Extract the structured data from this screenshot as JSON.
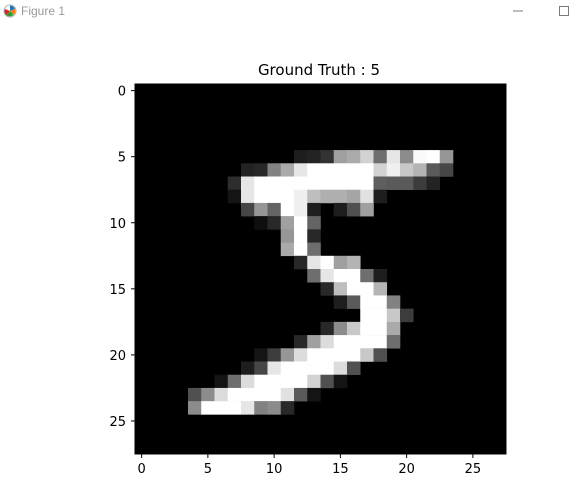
{
  "window": {
    "title": "Figure 1",
    "icons": {
      "app": "matplotlib-logo-icon",
      "minimize": "minimize-icon",
      "maximize": "maximize-icon"
    }
  },
  "chart_data": {
    "type": "heatmap",
    "colormap": "gray",
    "title": "Ground Truth : 5",
    "xlabel": "",
    "ylabel": "",
    "xlim": [
      -0.5,
      27.5
    ],
    "ylim": [
      27.5,
      -0.5
    ],
    "xticks": [
      0,
      5,
      10,
      15,
      20,
      25
    ],
    "yticks": [
      0,
      5,
      10,
      15,
      20,
      25
    ],
    "grid": false,
    "rows": 28,
    "cols": 28,
    "pixels": [
      {
        "row": 5,
        "values": [
          [
            12,
            30
          ],
          [
            13,
            35
          ],
          [
            14,
            50
          ],
          [
            15,
            160
          ],
          [
            16,
            170
          ],
          [
            17,
            210
          ],
          [
            18,
            110
          ],
          [
            19,
            230
          ],
          [
            20,
            140
          ],
          [
            21,
            250
          ],
          [
            22,
            255
          ],
          [
            23,
            150
          ]
        ]
      },
      {
        "row": 6,
        "values": [
          [
            8,
            35
          ],
          [
            9,
            40
          ],
          [
            10,
            130
          ],
          [
            11,
            170
          ],
          [
            12,
            230
          ],
          [
            13,
            255
          ],
          [
            14,
            255
          ],
          [
            15,
            255
          ],
          [
            16,
            255
          ],
          [
            17,
            255
          ],
          [
            18,
            210
          ],
          [
            19,
            240
          ],
          [
            20,
            200
          ],
          [
            21,
            180
          ],
          [
            22,
            90
          ],
          [
            23,
            70
          ]
        ]
      },
      {
        "row": 7,
        "values": [
          [
            7,
            45
          ],
          [
            8,
            230
          ],
          [
            9,
            255
          ],
          [
            10,
            255
          ],
          [
            11,
            255
          ],
          [
            12,
            255
          ],
          [
            13,
            255
          ],
          [
            14,
            255
          ],
          [
            15,
            255
          ],
          [
            16,
            255
          ],
          [
            17,
            255
          ],
          [
            18,
            95
          ],
          [
            19,
            90
          ],
          [
            20,
            90
          ],
          [
            21,
            60
          ],
          [
            22,
            35
          ]
        ]
      },
      {
        "row": 8,
        "values": [
          [
            7,
            20
          ],
          [
            8,
            230
          ],
          [
            9,
            255
          ],
          [
            10,
            255
          ],
          [
            11,
            255
          ],
          [
            12,
            240
          ],
          [
            13,
            190
          ],
          [
            14,
            175
          ],
          [
            15,
            175
          ],
          [
            16,
            165
          ],
          [
            17,
            225
          ],
          [
            18,
            30
          ]
        ]
      },
      {
        "row": 9,
        "values": [
          [
            8,
            70
          ],
          [
            9,
            150
          ],
          [
            10,
            100
          ],
          [
            11,
            255
          ],
          [
            12,
            240
          ],
          [
            13,
            30
          ],
          [
            15,
            30
          ],
          [
            16,
            80
          ],
          [
            17,
            160
          ]
        ]
      },
      {
        "row": 10,
        "values": [
          [
            9,
            15
          ],
          [
            10,
            40
          ],
          [
            11,
            160
          ],
          [
            12,
            255
          ],
          [
            13,
            100
          ]
        ]
      },
      {
        "row": 11,
        "values": [
          [
            11,
            150
          ],
          [
            12,
            255
          ],
          [
            13,
            40
          ]
        ]
      },
      {
        "row": 12,
        "values": [
          [
            11,
            170
          ],
          [
            12,
            255
          ],
          [
            13,
            110
          ]
        ]
      },
      {
        "row": 13,
        "values": [
          [
            12,
            40
          ],
          [
            13,
            230
          ],
          [
            14,
            255
          ],
          [
            15,
            160
          ],
          [
            16,
            180
          ]
        ]
      },
      {
        "row": 14,
        "values": [
          [
            13,
            110
          ],
          [
            14,
            230
          ],
          [
            15,
            255
          ],
          [
            16,
            255
          ],
          [
            17,
            110
          ],
          [
            18,
            30
          ]
        ]
      },
      {
        "row": 15,
        "values": [
          [
            14,
            40
          ],
          [
            15,
            190
          ],
          [
            16,
            255
          ],
          [
            17,
            255
          ],
          [
            18,
            180
          ]
        ]
      },
      {
        "row": 16,
        "values": [
          [
            15,
            30
          ],
          [
            16,
            90
          ],
          [
            17,
            255
          ],
          [
            18,
            255
          ],
          [
            19,
            130
          ]
        ]
      },
      {
        "row": 17,
        "values": [
          [
            17,
            255
          ],
          [
            18,
            255
          ],
          [
            19,
            200
          ],
          [
            20,
            60
          ]
        ]
      },
      {
        "row": 18,
        "values": [
          [
            14,
            40
          ],
          [
            15,
            140
          ],
          [
            16,
            200
          ],
          [
            17,
            255
          ],
          [
            18,
            255
          ],
          [
            19,
            170
          ]
        ]
      },
      {
        "row": 19,
        "values": [
          [
            12,
            40
          ],
          [
            13,
            160
          ],
          [
            14,
            220
          ],
          [
            15,
            255
          ],
          [
            16,
            255
          ],
          [
            17,
            255
          ],
          [
            18,
            255
          ],
          [
            19,
            110
          ]
        ]
      },
      {
        "row": 20,
        "values": [
          [
            9,
            20
          ],
          [
            10,
            60
          ],
          [
            11,
            150
          ],
          [
            12,
            220
          ],
          [
            13,
            255
          ],
          [
            14,
            255
          ],
          [
            15,
            255
          ],
          [
            16,
            255
          ],
          [
            17,
            200
          ],
          [
            18,
            80
          ]
        ]
      },
      {
        "row": 21,
        "values": [
          [
            8,
            30
          ],
          [
            9,
            70
          ],
          [
            10,
            230
          ],
          [
            11,
            255
          ],
          [
            12,
            255
          ],
          [
            13,
            255
          ],
          [
            14,
            255
          ],
          [
            15,
            220
          ],
          [
            16,
            80
          ]
        ]
      },
      {
        "row": 22,
        "values": [
          [
            6,
            20
          ],
          [
            7,
            110
          ],
          [
            8,
            220
          ],
          [
            9,
            255
          ],
          [
            10,
            255
          ],
          [
            11,
            255
          ],
          [
            12,
            255
          ],
          [
            13,
            210
          ],
          [
            14,
            80
          ],
          [
            15,
            20
          ]
        ]
      },
      {
        "row": 23,
        "values": [
          [
            4,
            80
          ],
          [
            5,
            140
          ],
          [
            6,
            220
          ],
          [
            7,
            255
          ],
          [
            8,
            255
          ],
          [
            9,
            255
          ],
          [
            10,
            255
          ],
          [
            11,
            225
          ],
          [
            12,
            90
          ],
          [
            13,
            20
          ]
        ]
      },
      {
        "row": 24,
        "values": [
          [
            4,
            140
          ],
          [
            5,
            255
          ],
          [
            6,
            255
          ],
          [
            7,
            255
          ],
          [
            8,
            230
          ],
          [
            9,
            130
          ],
          [
            10,
            140
          ],
          [
            11,
            40
          ]
        ]
      }
    ]
  }
}
